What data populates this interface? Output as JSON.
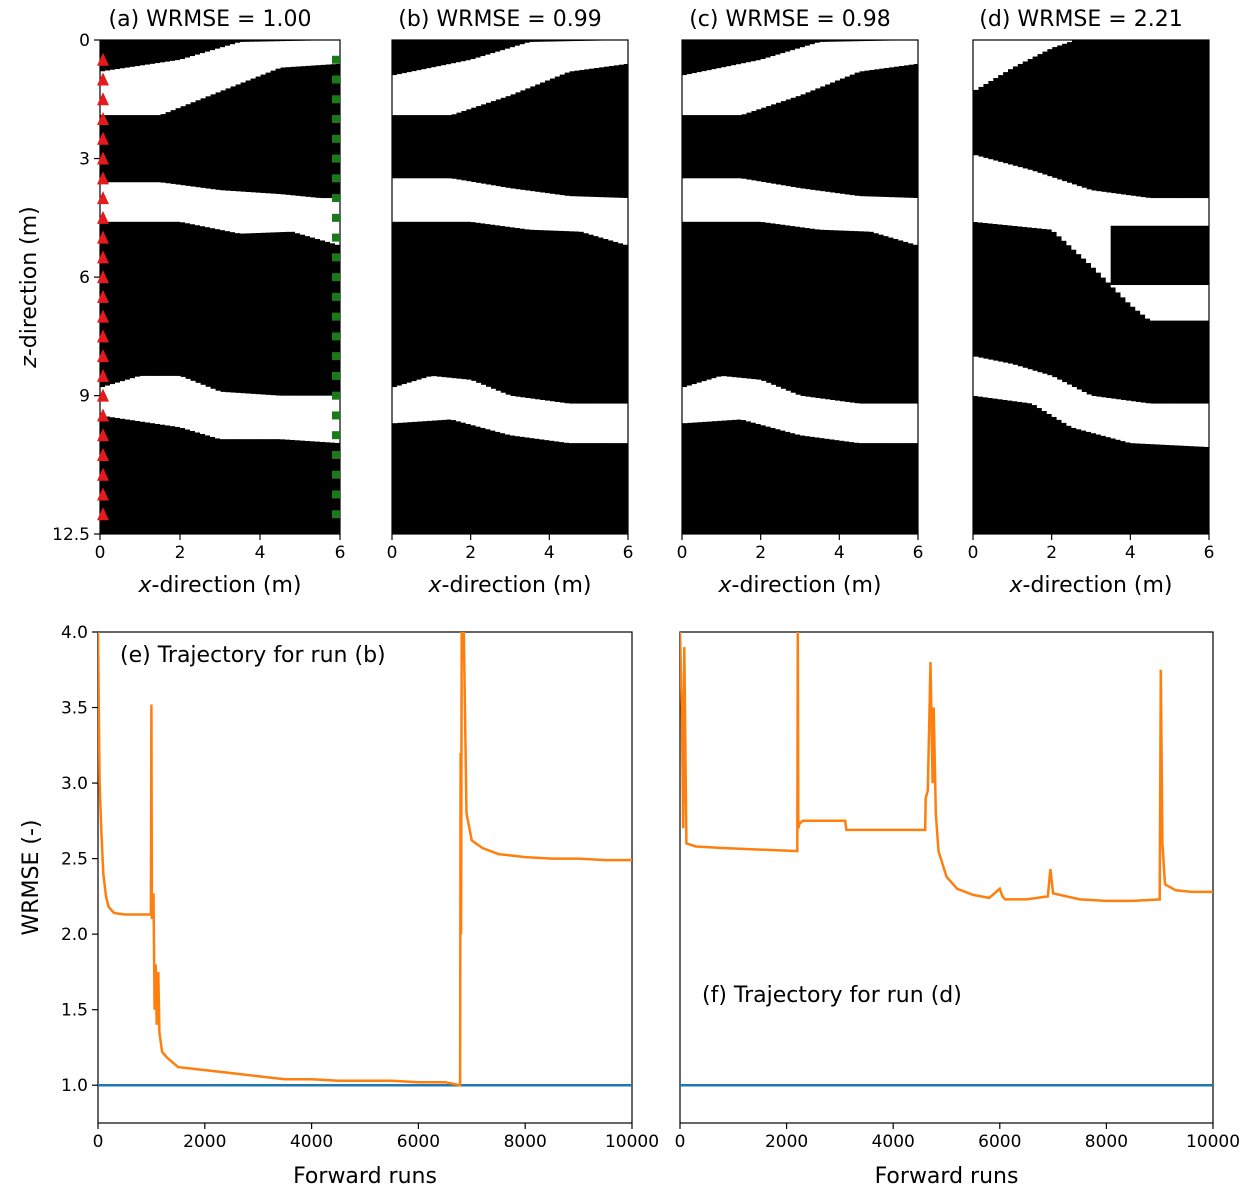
{
  "colors": {
    "rock": "#000000",
    "channel": "#ffffff",
    "trajectory": "#ff7f0e",
    "reference": "#1f77b4",
    "source": "#e41a1c",
    "receiver": "#1a7a1a"
  },
  "chart_data": [
    {
      "type": "heatmap",
      "panel": "a",
      "title": "(a) WRMSE = 1.00",
      "xlabel_italic": "x",
      "xlabel_rest": "-direction (m)",
      "ylabel_italic": "z",
      "ylabel_rest": "-direction (m)",
      "xlim": [
        0,
        6
      ],
      "ylim": [
        12.5,
        0
      ],
      "xticks": [
        "0",
        "2",
        "4",
        "6"
      ],
      "yticks": [
        {
          "v": 0,
          "label": "0"
        },
        {
          "v": 3,
          "label": "3"
        },
        {
          "v": 6,
          "label": "6"
        },
        {
          "v": 9,
          "label": "9"
        },
        {
          "v": 12.5,
          "label": "12.5"
        }
      ],
      "channels": [
        {
          "top": [
            [
              0,
              0.8
            ],
            [
              2,
              0.5
            ],
            [
              3.5,
              0.05
            ],
            [
              6,
              0.0
            ]
          ],
          "bottom": [
            [
              0,
              1.9
            ],
            [
              1.5,
              1.9
            ],
            [
              3,
              1.3
            ],
            [
              4.5,
              0.7
            ],
            [
              6,
              0.6
            ]
          ]
        },
        {
          "top": [
            [
              0,
              3.6
            ],
            [
              1.5,
              3.6
            ],
            [
              3,
              3.8
            ],
            [
              4.5,
              3.9
            ],
            [
              5.5,
              4.0
            ],
            [
              6,
              4.0
            ]
          ],
          "bottom": [
            [
              0,
              4.6
            ],
            [
              2,
              4.6
            ],
            [
              3.5,
              4.9
            ],
            [
              4.8,
              4.85
            ],
            [
              6,
              5.2
            ]
          ]
        },
        {
          "top": [
            [
              0,
              8.8
            ],
            [
              1,
              8.5
            ],
            [
              2,
              8.5
            ],
            [
              3,
              8.9
            ],
            [
              4.5,
              9.0
            ],
            [
              6,
              9.0
            ]
          ],
          "bottom": [
            [
              0,
              9.5
            ],
            [
              2,
              9.8
            ],
            [
              3,
              10.1
            ],
            [
              4.5,
              10.1
            ],
            [
              6,
              10.2
            ]
          ]
        }
      ],
      "sources_x": 0,
      "sources_z": [
        0.5,
        1.0,
        1.5,
        2.0,
        2.5,
        3.0,
        3.5,
        4.0,
        4.5,
        5.0,
        5.5,
        6.0,
        6.5,
        7.0,
        7.5,
        8.0,
        8.5,
        9.0,
        9.5,
        10.0,
        10.5,
        11.0,
        11.5,
        12.0
      ],
      "receivers_x": 5.9,
      "receivers_z": [
        0.5,
        1.0,
        1.5,
        2.0,
        2.5,
        3.0,
        3.5,
        4.0,
        4.5,
        5.0,
        5.5,
        6.0,
        6.5,
        7.0,
        7.5,
        8.0,
        8.5,
        9.0,
        9.5,
        10.0,
        10.5,
        11.0,
        11.5,
        12.0
      ]
    },
    {
      "type": "heatmap",
      "panel": "b",
      "title": "(b) WRMSE = 0.99",
      "xlabel_italic": "x",
      "xlabel_rest": "-direction (m)",
      "xlim": [
        0,
        6
      ],
      "ylim": [
        12.5,
        0
      ],
      "xticks": [
        "0",
        "2",
        "4",
        "6"
      ],
      "channels": [
        {
          "top": [
            [
              0,
              0.9
            ],
            [
              2,
              0.5
            ],
            [
              3.5,
              0.05
            ],
            [
              6,
              0.0
            ]
          ],
          "bottom": [
            [
              0,
              1.9
            ],
            [
              1.5,
              1.9
            ],
            [
              3,
              1.4
            ],
            [
              4.5,
              0.8
            ],
            [
              6,
              0.6
            ]
          ]
        },
        {
          "top": [
            [
              0,
              3.5
            ],
            [
              1.5,
              3.5
            ],
            [
              3,
              3.75
            ],
            [
              4.5,
              3.95
            ],
            [
              6,
              4.0
            ]
          ],
          "bottom": [
            [
              0,
              4.6
            ],
            [
              2,
              4.6
            ],
            [
              3.5,
              4.8
            ],
            [
              4.8,
              4.85
            ],
            [
              6,
              5.2
            ]
          ]
        },
        {
          "top": [
            [
              0,
              8.8
            ],
            [
              1,
              8.5
            ],
            [
              2,
              8.6
            ],
            [
              3,
              9.0
            ],
            [
              4.5,
              9.2
            ],
            [
              6,
              9.2
            ]
          ],
          "bottom": [
            [
              0,
              9.7
            ],
            [
              1.5,
              9.6
            ],
            [
              3,
              10.0
            ],
            [
              4.5,
              10.2
            ],
            [
              6,
              10.2
            ]
          ]
        }
      ]
    },
    {
      "type": "heatmap",
      "panel": "c",
      "title": "(c) WRMSE = 0.98",
      "xlabel_italic": "x",
      "xlabel_rest": "-direction (m)",
      "xlim": [
        0,
        6
      ],
      "ylim": [
        12.5,
        0
      ],
      "xticks": [
        "0",
        "2",
        "4",
        "6"
      ],
      "channels": [
        {
          "top": [
            [
              0,
              0.9
            ],
            [
              2,
              0.5
            ],
            [
              3.5,
              0.05
            ],
            [
              6,
              0.0
            ]
          ],
          "bottom": [
            [
              0,
              1.9
            ],
            [
              1.5,
              1.9
            ],
            [
              3,
              1.4
            ],
            [
              4.5,
              0.8
            ],
            [
              6,
              0.6
            ]
          ]
        },
        {
          "top": [
            [
              0,
              3.5
            ],
            [
              1.5,
              3.5
            ],
            [
              3,
              3.75
            ],
            [
              4.5,
              3.95
            ],
            [
              6,
              4.0
            ]
          ],
          "bottom": [
            [
              0,
              4.6
            ],
            [
              2,
              4.6
            ],
            [
              3.5,
              4.8
            ],
            [
              4.8,
              4.85
            ],
            [
              6,
              5.2
            ]
          ]
        },
        {
          "top": [
            [
              0,
              8.8
            ],
            [
              1,
              8.5
            ],
            [
              2,
              8.6
            ],
            [
              3,
              9.0
            ],
            [
              4.5,
              9.2
            ],
            [
              6,
              9.2
            ]
          ],
          "bottom": [
            [
              0,
              9.7
            ],
            [
              1.5,
              9.6
            ],
            [
              3,
              10.0
            ],
            [
              4.5,
              10.2
            ],
            [
              6,
              10.2
            ]
          ]
        }
      ]
    },
    {
      "type": "heatmap",
      "panel": "d",
      "title": "(d) WRMSE = 2.21",
      "xlabel_italic": "x",
      "xlabel_rest": "-direction (m)",
      "xlim": [
        0,
        6
      ],
      "ylim": [
        12.5,
        0
      ],
      "xticks": [
        "0",
        "2",
        "4",
        "6"
      ],
      "channels": [
        {
          "top": [
            [
              0,
              0.0
            ],
            [
              2,
              0.0
            ]
          ],
          "bottom": [
            [
              0,
              1.3
            ],
            [
              1,
              0.7
            ],
            [
              2,
              0.2
            ],
            [
              2.6,
              0.0
            ]
          ]
        },
        {
          "top": [
            [
              0,
              2.9
            ],
            [
              1.5,
              3.3
            ],
            [
              3,
              3.8
            ],
            [
              4.5,
              4.0
            ],
            [
              6,
              4.0
            ]
          ],
          "bottom": [
            [
              0,
              4.6
            ],
            [
              2,
              4.8
            ],
            [
              3,
              5.7
            ],
            [
              4,
              6.7
            ],
            [
              4.5,
              7.1
            ],
            [
              6,
              7.1
            ]
          ]
        },
        {
          "top": [
            [
              0,
              8.0
            ],
            [
              1,
              8.2
            ],
            [
              2,
              8.5
            ],
            [
              3,
              9.0
            ],
            [
              4.5,
              9.2
            ],
            [
              6,
              9.2
            ]
          ],
          "bottom": [
            [
              0,
              9.0
            ],
            [
              1.5,
              9.2
            ],
            [
              2.5,
              9.8
            ],
            [
              4,
              10.2
            ],
            [
              6,
              10.3
            ]
          ]
        }
      ],
      "blocks": [
        {
          "z0": 4.7,
          "z1": 6.2,
          "x0": 3.5,
          "x1": 6.0
        }
      ]
    },
    {
      "type": "line",
      "panel": "e",
      "annotation": "(e) Trajectory for run (b)",
      "xlabel": "Forward runs",
      "ylabel": "WRMSE (-)",
      "xlim": [
        0,
        10000
      ],
      "ylim": [
        0.75,
        4.0
      ],
      "xticks": [
        "0",
        "2000",
        "4000",
        "6000",
        "8000",
        "10000"
      ],
      "yticks": [
        "1.0",
        "1.5",
        "2.0",
        "2.5",
        "3.0",
        "3.5",
        "4.0"
      ],
      "reference_line": 1.0,
      "series": [
        {
          "x": [
            0,
            30,
            60,
            100,
            150,
            200,
            300,
            500,
            800,
            990,
            1000,
            1010,
            1040,
            1060,
            1080,
            1100,
            1130,
            1150,
            1200,
            1300,
            1500,
            2000,
            2500,
            3000,
            3500,
            4000,
            4500,
            5000,
            5500,
            6000,
            6500,
            6780,
            6790,
            6800,
            6810,
            6820,
            6850,
            6900,
            7000,
            7200,
            7500,
            8000,
            8500,
            9000,
            9500,
            10000
          ],
          "y": [
            4.0,
            3.0,
            2.7,
            2.4,
            2.25,
            2.18,
            2.14,
            2.13,
            2.13,
            2.13,
            3.52,
            2.1,
            2.27,
            1.5,
            1.8,
            1.4,
            1.75,
            1.35,
            1.22,
            1.18,
            1.12,
            1.1,
            1.08,
            1.06,
            1.04,
            1.04,
            1.03,
            1.03,
            1.03,
            1.02,
            1.02,
            1.0,
            3.2,
            2.0,
            4.0,
            3.8,
            4.0,
            2.8,
            2.62,
            2.57,
            2.53,
            2.51,
            2.5,
            2.5,
            2.49,
            2.49
          ]
        }
      ]
    },
    {
      "type": "line",
      "panel": "f",
      "annotation": "(f) Trajectory for run (d)",
      "xlabel": "Forward runs",
      "xlim": [
        0,
        10000
      ],
      "ylim": [
        0.75,
        4.0
      ],
      "xticks": [
        "0",
        "2000",
        "4000",
        "6000",
        "8000",
        "10000"
      ],
      "reference_line": 1.0,
      "series": [
        {
          "x": [
            0,
            40,
            60,
            80,
            120,
            300,
            800,
            1500,
            2200,
            2210,
            2220,
            2240,
            2300,
            2600,
            3100,
            3120,
            3500,
            4000,
            4600,
            4610,
            4650,
            4700,
            4740,
            4760,
            4800,
            4850,
            5000,
            5200,
            5500,
            5800,
            6000,
            6050,
            6100,
            6500,
            6900,
            6950,
            7000,
            7500,
            8000,
            8500,
            9000,
            9020,
            9050,
            9100,
            9300,
            9600,
            10000
          ],
          "y": [
            4.0,
            3.4,
            2.7,
            3.9,
            2.6,
            2.58,
            2.57,
            2.56,
            2.55,
            4.0,
            2.7,
            2.73,
            2.75,
            2.75,
            2.75,
            2.69,
            2.69,
            2.69,
            2.69,
            2.9,
            2.95,
            3.8,
            3.0,
            3.5,
            2.8,
            2.55,
            2.38,
            2.3,
            2.26,
            2.24,
            2.3,
            2.25,
            2.23,
            2.23,
            2.25,
            2.43,
            2.27,
            2.23,
            2.22,
            2.22,
            2.23,
            3.75,
            2.6,
            2.33,
            2.29,
            2.28,
            2.28
          ]
        }
      ]
    }
  ]
}
